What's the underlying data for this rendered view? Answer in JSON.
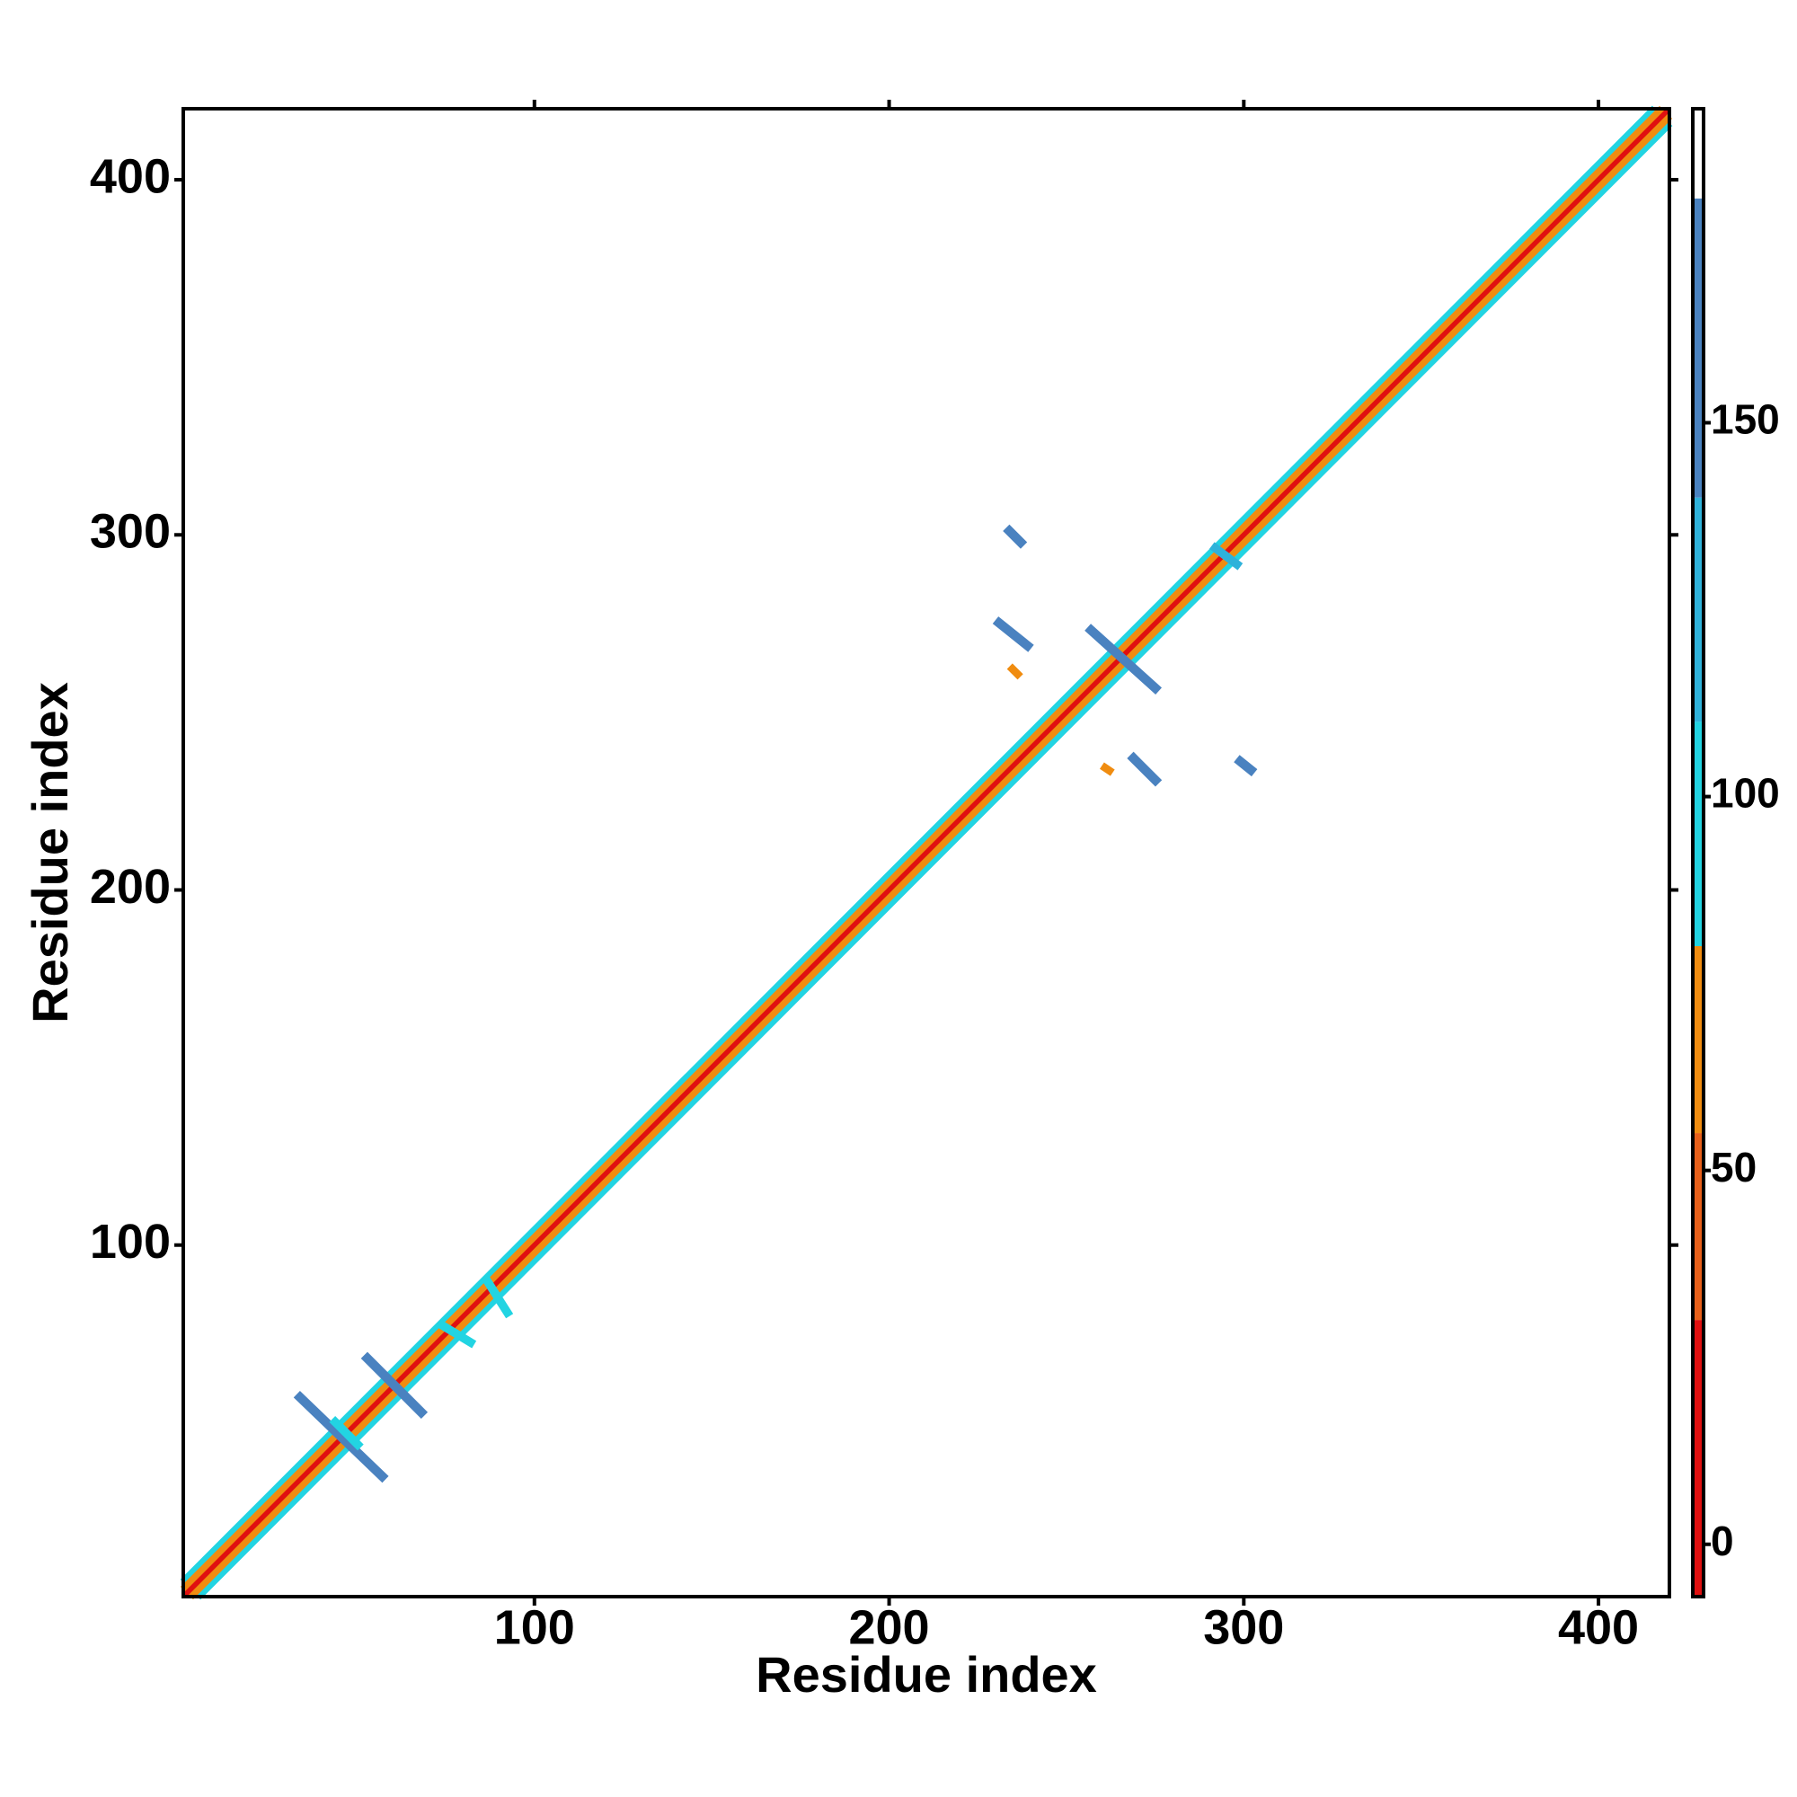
{
  "chart_data": {
    "type": "contact_map",
    "xlabel": "Residue index",
    "ylabel": "Residue index",
    "xlim": [
      1,
      420
    ],
    "ylim": [
      1,
      420
    ],
    "xticks": [
      100,
      200,
      300,
      400
    ],
    "yticks": [
      100,
      200,
      300,
      400
    ],
    "colorbar": {
      "lim": [
        -7,
        192
      ],
      "ticks": [
        0,
        50,
        100,
        150
      ],
      "bands": [
        {
          "from": -7,
          "to": 30,
          "color": "#e01010"
        },
        {
          "from": 30,
          "to": 55,
          "color": "#e8601a"
        },
        {
          "from": 55,
          "to": 80,
          "color": "#f08c10"
        },
        {
          "from": 80,
          "to": 110,
          "color": "#22d4e2"
        },
        {
          "from": 110,
          "to": 140,
          "color": "#2fb2da"
        },
        {
          "from": 140,
          "to": 180,
          "color": "#4a82c0"
        },
        {
          "from": 180,
          "to": 192,
          "color": "#ffffff"
        }
      ]
    },
    "contacts": [
      {
        "from": [
          5,
          1
        ],
        "to": [
          420,
          416
        ],
        "value": 95
      },
      {
        "from": [
          1,
          5
        ],
        "to": [
          416,
          420
        ],
        "value": 95
      },
      {
        "from": [
          3,
          1
        ],
        "to": [
          420,
          418
        ],
        "value": 60
      },
      {
        "from": [
          1,
          3
        ],
        "to": [
          418,
          420
        ],
        "value": 60
      },
      {
        "from": [
          1,
          1
        ],
        "to": [
          420,
          420
        ],
        "value": 10
      },
      {
        "from": [
          33,
          58
        ],
        "to": [
          58,
          34
        ],
        "value": 150
      },
      {
        "from": [
          52,
          69
        ],
        "to": [
          69,
          52
        ],
        "value": 150
      },
      {
        "from": [
          43,
          51
        ],
        "to": [
          51,
          43
        ],
        "value": 100
      },
      {
        "from": [
          73,
          78
        ],
        "to": [
          83,
          72
        ],
        "value": 100
      },
      {
        "from": [
          86,
          91
        ],
        "to": [
          93,
          80
        ],
        "value": 100
      },
      {
        "from": [
          233,
          302
        ],
        "to": [
          238,
          297
        ],
        "value": 150
      },
      {
        "from": [
          230,
          276
        ],
        "to": [
          240,
          268
        ],
        "value": 150
      },
      {
        "from": [
          256,
          274
        ],
        "to": [
          276,
          256
        ],
        "value": 150
      },
      {
        "from": [
          268,
          238
        ],
        "to": [
          276,
          230
        ],
        "value": 150
      },
      {
        "from": [
          298,
          237
        ],
        "to": [
          303,
          233
        ],
        "value": 150
      },
      {
        "from": [
          291,
          297
        ],
        "to": [
          299,
          291
        ],
        "value": 110
      },
      {
        "from": [
          234,
          263
        ],
        "to": [
          237,
          260
        ],
        "value": 60
      },
      {
        "from": [
          260,
          235
        ],
        "to": [
          263,
          233
        ],
        "value": 60
      }
    ]
  }
}
